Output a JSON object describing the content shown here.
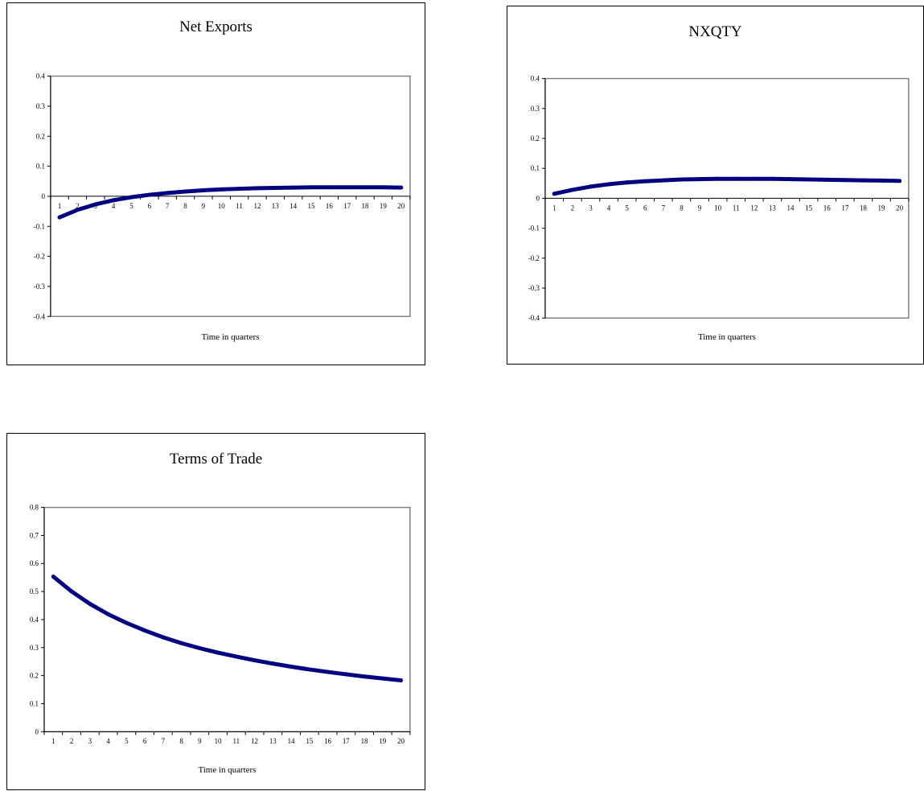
{
  "chart_data": [
    {
      "type": "line",
      "title": "Net Exports",
      "xlabel": "Time in quarters",
      "ylabel": "",
      "ylim": [
        -0.4,
        0.4
      ],
      "yticks": [
        "0.4",
        "0.3",
        "0.2",
        "0.1",
        "0",
        "-0.1",
        "-0.2",
        "-0.3",
        "-0.4"
      ],
      "categories": [
        "1",
        "2",
        "3",
        "4",
        "5",
        "6",
        "7",
        "8",
        "9",
        "10",
        "11",
        "12",
        "13",
        "14",
        "15",
        "16",
        "17",
        "18",
        "19",
        "20"
      ],
      "x_axis_position": "zero-line",
      "grid": false,
      "line_color": "#000080",
      "plot_border_color": "#808080",
      "series": [
        {
          "values": [
            -0.07,
            -0.045,
            -0.027,
            -0.013,
            -0.003,
            0.005,
            0.011,
            0.016,
            0.02,
            0.023,
            0.025,
            0.027,
            0.028,
            0.029,
            0.03,
            0.03,
            0.03,
            0.03,
            0.03,
            0.029
          ]
        }
      ]
    },
    {
      "type": "line",
      "title": "NXQTY",
      "xlabel": "Time in quarters",
      "ylabel": "",
      "ylim": [
        -0.4,
        0.4
      ],
      "yticks": [
        "0.4",
        "0.3",
        "0.2",
        "0.1",
        "0",
        "-0.1",
        "-0.2",
        "-0.3",
        "-0.4"
      ],
      "categories": [
        "1",
        "2",
        "3",
        "4",
        "5",
        "6",
        "7",
        "8",
        "9",
        "10",
        "11",
        "12",
        "13",
        "14",
        "15",
        "16",
        "17",
        "18",
        "19",
        "20"
      ],
      "x_axis_position": "zero-line",
      "grid": false,
      "line_color": "#000080",
      "plot_border_color": "#808080",
      "series": [
        {
          "values": [
            0.015,
            0.028,
            0.039,
            0.047,
            0.053,
            0.057,
            0.06,
            0.063,
            0.064,
            0.065,
            0.065,
            0.065,
            0.065,
            0.064,
            0.063,
            0.062,
            0.061,
            0.06,
            0.059,
            0.058
          ]
        }
      ]
    },
    {
      "type": "line",
      "title": "Terms of Trade",
      "xlabel": "Time in quarters",
      "ylabel": "",
      "ylim": [
        0,
        0.8
      ],
      "yticks": [
        "0.8",
        "0.7",
        "0.6",
        "0.5",
        "0.4",
        "0.3",
        "0.2",
        "0.1",
        "0"
      ],
      "categories": [
        "1",
        "2",
        "3",
        "4",
        "5",
        "6",
        "7",
        "8",
        "9",
        "10",
        "11",
        "12",
        "13",
        "14",
        "15",
        "16",
        "17",
        "18",
        "19",
        "20"
      ],
      "x_axis_position": "bottom",
      "grid": false,
      "line_color": "#000080",
      "plot_border_color": "#808080",
      "series": [
        {
          "values": [
            0.553,
            0.5,
            0.456,
            0.419,
            0.388,
            0.361,
            0.337,
            0.316,
            0.298,
            0.282,
            0.268,
            0.255,
            0.243,
            0.232,
            0.222,
            0.213,
            0.205,
            0.197,
            0.19,
            0.183
          ]
        }
      ]
    }
  ]
}
